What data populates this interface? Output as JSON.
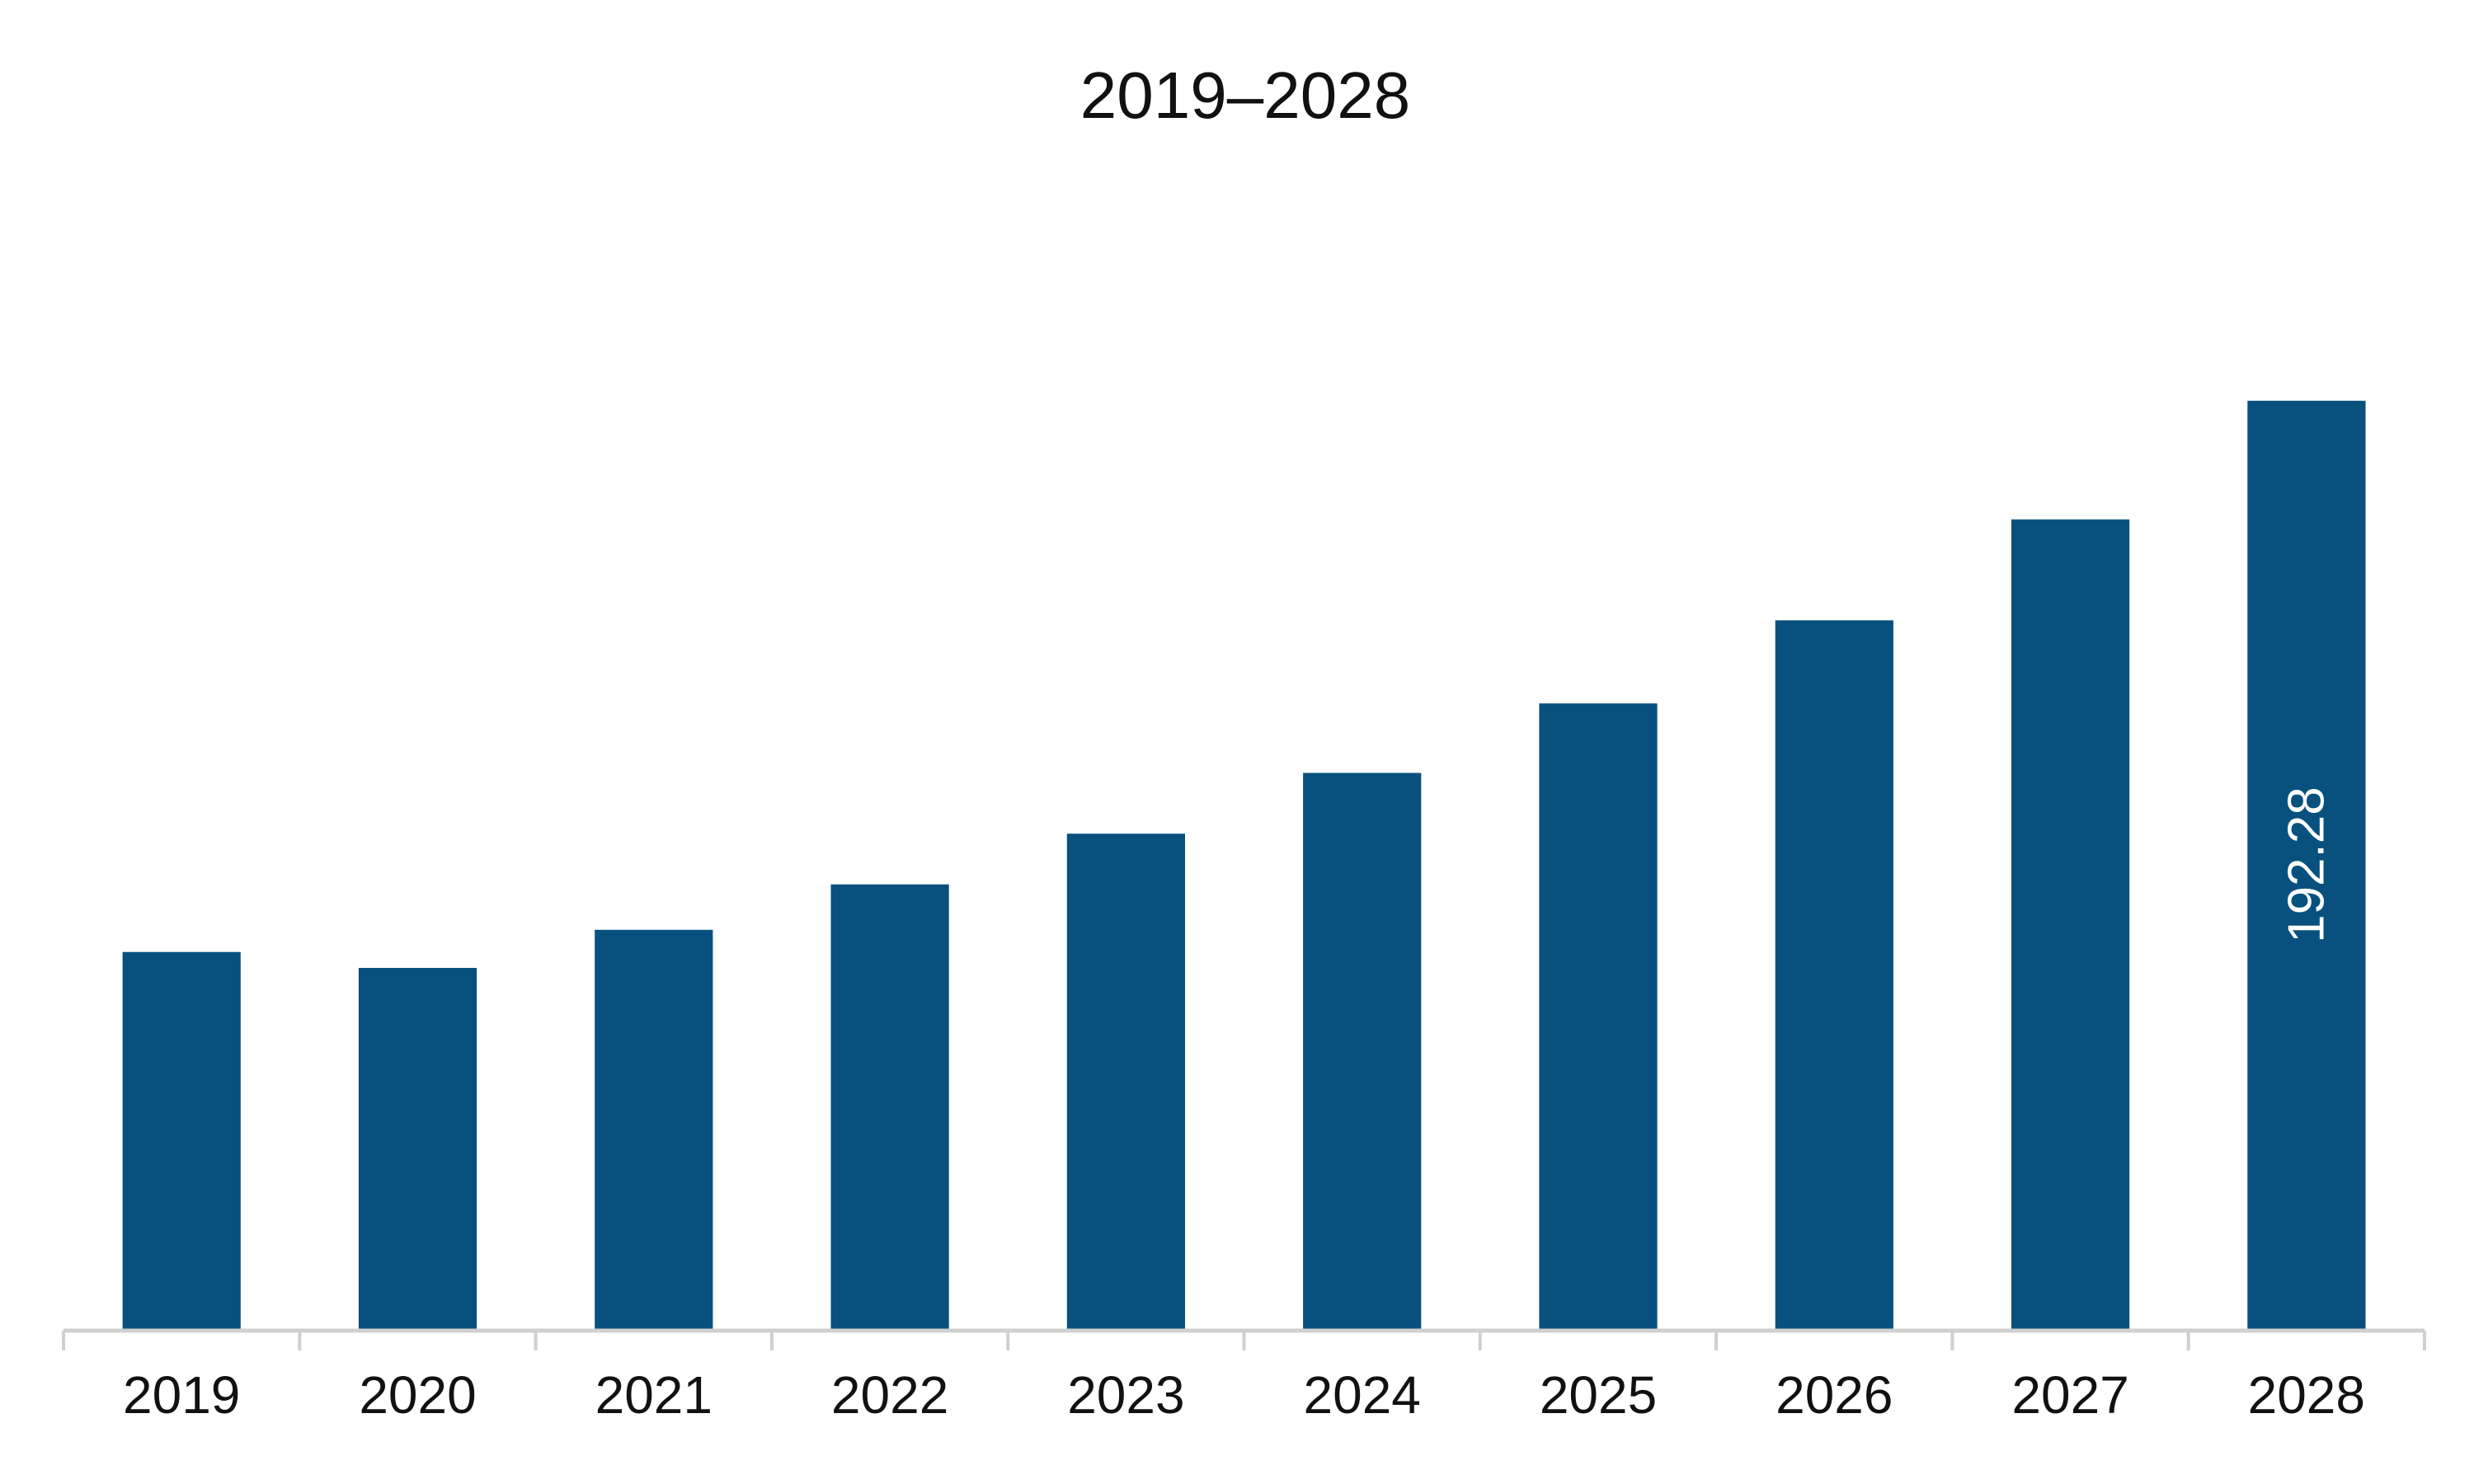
{
  "chart_data": {
    "type": "bar",
    "title": "2019–2028",
    "xlabel": "",
    "ylabel": "",
    "categories": [
      "2019",
      "2020",
      "2021",
      "2022",
      "2023",
      "2024",
      "2025",
      "2026",
      "2027",
      "2028"
    ],
    "values": [
      78.1,
      74.8,
      82.7,
      92.1,
      102.6,
      115.2,
      129.6,
      146.8,
      167.7,
      192.28
    ],
    "data_labels": [
      {
        "category": "2028",
        "text": "192.28"
      }
    ],
    "ylim": [
      0,
      235
    ],
    "grid": false,
    "legend": "none",
    "bar_color": "#08517e",
    "axis_color": "#d0d0d0"
  }
}
